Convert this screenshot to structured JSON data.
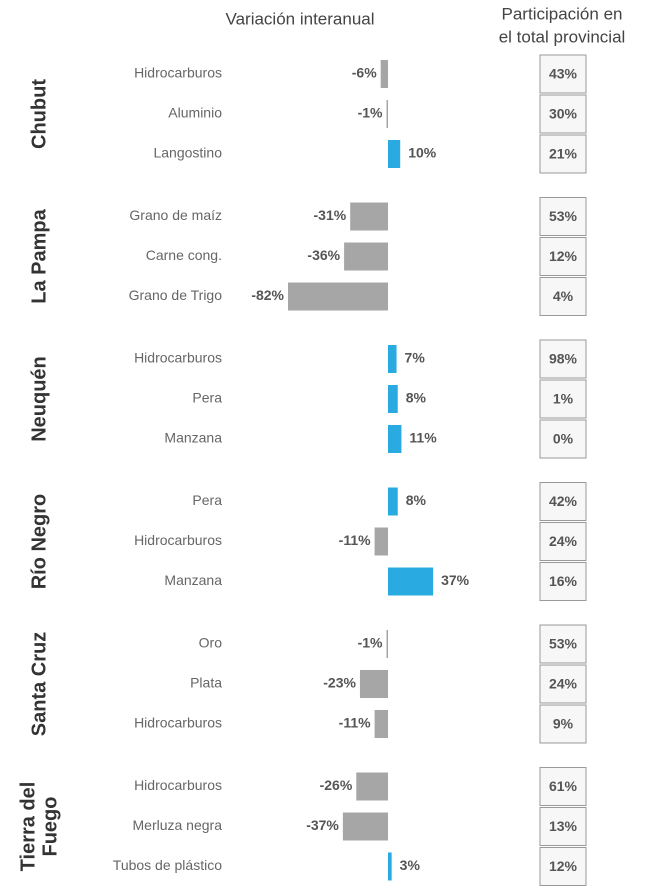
{
  "chart_data": {
    "type": "bar",
    "headers": {
      "variation": "Variación interanual",
      "share": [
        "Participación en",
        "el total provincial"
      ]
    },
    "colors": {
      "negative": "#a6a6a6",
      "positive": "#29abe2"
    },
    "groups": [
      {
        "name": [
          "Chubut"
        ],
        "categories": [
          "Hidrocarburos",
          "Aluminio",
          "Langostino"
        ],
        "values": [
          -6,
          -1,
          10
        ],
        "value_labels": [
          "-6%",
          "-1%",
          "10%"
        ],
        "shares": [
          43,
          30,
          21
        ],
        "share_labels": [
          "43%",
          "30%",
          "21%"
        ]
      },
      {
        "name": [
          "La Pampa"
        ],
        "categories": [
          "Grano de maíz",
          "Carne cong.",
          "Grano de Trigo"
        ],
        "values": [
          -31,
          -36,
          -82
        ],
        "value_labels": [
          "-31%",
          "-36%",
          "-82%"
        ],
        "shares": [
          53,
          12,
          4
        ],
        "share_labels": [
          "53%",
          "12%",
          "4%"
        ]
      },
      {
        "name": [
          "Neuquén"
        ],
        "categories": [
          "Hidrocarburos",
          "Pera",
          "Manzana"
        ],
        "values": [
          7,
          8,
          11
        ],
        "value_labels": [
          "7%",
          "8%",
          "11%"
        ],
        "shares": [
          98,
          1,
          0
        ],
        "share_labels": [
          "98%",
          "1%",
          "0%"
        ]
      },
      {
        "name": [
          "Río Negro"
        ],
        "categories": [
          "Pera",
          "Hidrocarburos",
          "Manzana"
        ],
        "values": [
          8,
          -11,
          37
        ],
        "value_labels": [
          "8%",
          "-11%",
          "37%"
        ],
        "shares": [
          42,
          24,
          16
        ],
        "share_labels": [
          "42%",
          "24%",
          "16%"
        ]
      },
      {
        "name": [
          "Santa Cruz"
        ],
        "categories": [
          "Oro",
          "Plata",
          "Hidrocarburos"
        ],
        "values": [
          -1,
          -23,
          -11
        ],
        "value_labels": [
          "-1%",
          "-23%",
          "-11%"
        ],
        "shares": [
          53,
          24,
          9
        ],
        "share_labels": [
          "53%",
          "24%",
          "9%"
        ]
      },
      {
        "name": [
          "Tierra del",
          "Fuego"
        ],
        "categories": [
          "Hidrocarburos",
          "Merluza negra",
          "Tubos de plástico"
        ],
        "values": [
          -26,
          -37,
          3
        ],
        "value_labels": [
          "-26%",
          "-37%",
          "3%"
        ],
        "shares": [
          61,
          13,
          12
        ],
        "share_labels": [
          "61%",
          "13%",
          "12%"
        ]
      }
    ]
  }
}
